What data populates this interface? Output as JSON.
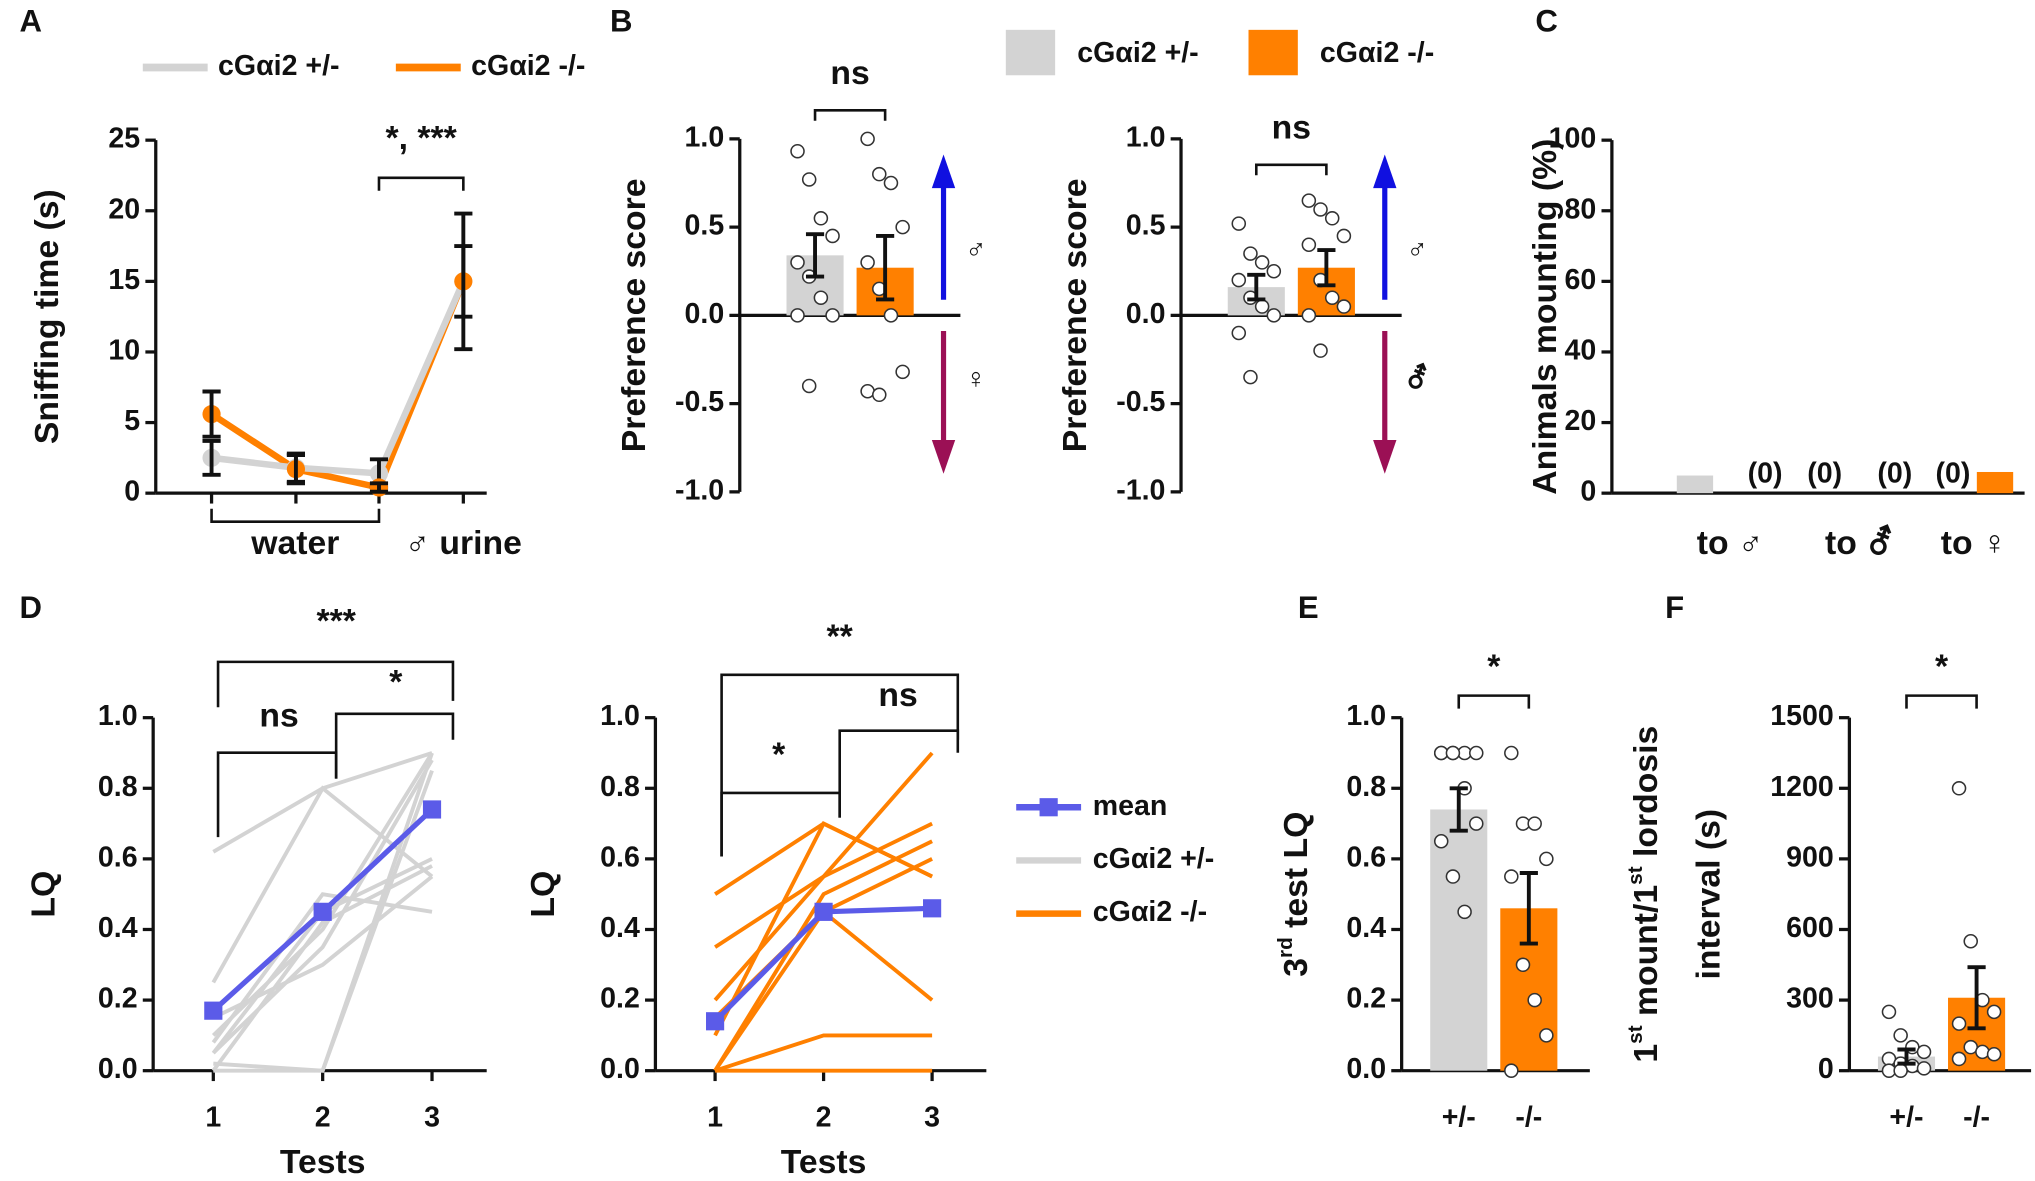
{
  "chart_data": [
    {
      "panel": "A",
      "type": "line",
      "ylabel": "Sniffing time (s)",
      "categories": [
        null,
        null,
        null,
        null
      ],
      "x_group_labels": [
        "water",
        "♂ urine"
      ],
      "ylim": [
        0,
        25
      ],
      "yticks": [
        0,
        5,
        10,
        15,
        20,
        25
      ],
      "series": [
        {
          "name": "cGαi2 +/-",
          "color": "#d3d3d3",
          "values": [
            2.5,
            1.8,
            1.4,
            15
          ],
          "errors": [
            1.2,
            1.0,
            1.0,
            2.5
          ]
        },
        {
          "name": "cGαi2 -/-",
          "color": "#ff8000",
          "values": [
            5.6,
            1.7,
            0.4,
            15
          ],
          "errors": [
            1.6,
            1.0,
            0.3,
            4.8
          ]
        }
      ],
      "annotations": [
        "*, ***"
      ]
    },
    {
      "panel": "B",
      "type": "bar",
      "ylabel": "Preference score",
      "categories": [
        null,
        null
      ],
      "legend": [
        {
          "name": "cGαi2 +/-",
          "color": "#d3d3d3"
        },
        {
          "name": "cGαi2 -/-",
          "color": "#ff8000"
        }
      ],
      "ylim": [
        -1,
        1
      ],
      "yticks": [
        {
          "value": 1,
          "label": "1.0"
        },
        0.5,
        {
          "value": 0,
          "label": "0.0"
        },
        -0.5,
        {
          "value": -1,
          "label": "-1.0"
        }
      ],
      "values": [
        0.34,
        0.27
      ],
      "errors": [
        0.12,
        0.18
      ],
      "colors": [
        "#d3d3d3",
        "#ff8000"
      ],
      "points": [
        [
          0.93,
          0.77,
          0.55,
          0.45,
          0.3,
          0.22,
          0.1,
          0.0,
          0.0,
          -0.4
        ],
        [
          1.0,
          0.8,
          0.75,
          0.5,
          0.3,
          0.15,
          0.0,
          -0.32,
          -0.43,
          -0.45
        ]
      ],
      "annotations": [
        "ns"
      ],
      "symbols": [
        "♂",
        "♀"
      ]
    },
    {
      "type": "bar",
      "ylabel": "Preference score",
      "categories": [
        null,
        null
      ],
      "ylim": [
        -1,
        1
      ],
      "yticks": [
        {
          "value": 1,
          "label": "1.0"
        },
        0.5,
        {
          "value": 0,
          "label": "0.0"
        },
        -0.5,
        {
          "value": -1,
          "label": "-1.0"
        }
      ],
      "values": [
        0.16,
        0.27
      ],
      "errors": [
        0.07,
        0.1
      ],
      "colors": [
        "#d3d3d3",
        "#ff8000"
      ],
      "points": [
        [
          0.52,
          0.35,
          0.3,
          0.25,
          0.2,
          0.1,
          0.05,
          0.0,
          -0.1,
          -0.35
        ],
        [
          0.65,
          0.6,
          0.55,
          0.45,
          0.4,
          0.2,
          0.1,
          0.05,
          0.0,
          -0.2
        ]
      ],
      "annotations": [
        "ns"
      ],
      "symbols": [
        "♂",
        "⚦"
      ]
    },
    {
      "panel": "C",
      "type": "bar",
      "ylabel": "Animals mounting (%)",
      "categories": [
        "to ♂",
        "to ⚦",
        "to ♀"
      ],
      "ylim": [
        0,
        100
      ],
      "yticks": [
        0,
        20,
        40,
        60,
        80,
        100
      ],
      "series": [
        {
          "color": "#d3d3d3",
          "values": [
            5,
            0,
            0
          ],
          "value_labels": [
            null,
            "(0)",
            "(0)"
          ]
        },
        {
          "color": "#ff8000",
          "values": [
            0,
            0,
            6
          ],
          "value_labels": [
            "(0)",
            "(0)",
            null
          ]
        }
      ]
    },
    {
      "panel": "D",
      "type": "line",
      "ylabel": "LQ",
      "xlabel": "Tests",
      "x": [
        1,
        2,
        3
      ],
      "xlim": [
        0.45,
        3.5
      ],
      "xticks": [
        1,
        2,
        3
      ],
      "ylim": [
        0,
        1
      ],
      "yticks": [
        {
          "value": 0,
          "label": "0.0"
        },
        0.2,
        0.4,
        0.6,
        0.8,
        {
          "value": 1,
          "label": "1.0"
        }
      ],
      "series": [
        {
          "name": "mean",
          "color": "#5b5be8",
          "values": [
            0.17,
            0.45,
            0.74
          ]
        },
        {
          "name": "cGαi2 +/-",
          "color": "#d3d3d3",
          "lines": [
            [
              0.62,
              0.8,
              0.9
            ],
            [
              0.25,
              0.8,
              0.55
            ],
            [
              0.1,
              0.4,
              0.9
            ],
            [
              0.05,
              0.45,
              0.6
            ],
            [
              0.0,
              0.42,
              0.58
            ],
            [
              0.05,
              0.35,
              0.88
            ],
            [
              0.0,
              0.0,
              0.85
            ],
            [
              0.08,
              0.5,
              0.45
            ],
            [
              0.02,
              0.0,
              0.9
            ],
            [
              0.15,
              0.3,
              0.55
            ]
          ]
        }
      ],
      "annotations": [
        "***",
        "ns",
        "*"
      ]
    },
    {
      "type": "line",
      "ylabel": "LQ",
      "xlabel": "Tests",
      "x": [
        1,
        2,
        3
      ],
      "xlim": [
        0.45,
        3.5
      ],
      "xticks": [
        1,
        2,
        3
      ],
      "ylim": [
        0,
        1
      ],
      "yticks": [
        {
          "value": 0,
          "label": "0.0"
        },
        0.2,
        0.4,
        0.6,
        0.8,
        {
          "value": 1,
          "label": "1.0"
        }
      ],
      "series": [
        {
          "color": "#5b5be8",
          "values": [
            0.14,
            0.45,
            0.46
          ]
        },
        {
          "name": "cGαi2 -/-",
          "color": "#ff8000",
          "lines": [
            [
              0.5,
              0.7,
              0.55
            ],
            [
              0.35,
              0.55,
              0.9
            ],
            [
              0.2,
              0.55,
              0.7
            ],
            [
              0.15,
              0.45,
              0.2
            ],
            [
              0.0,
              0.5,
              0.65
            ],
            [
              0.0,
              0.1,
              0.1
            ],
            [
              0.0,
              0.0,
              0.0
            ],
            [
              0.1,
              0.7,
              0.55
            ],
            [
              0.0,
              0.45,
              0.6
            ]
          ]
        }
      ],
      "annotations": [
        "**",
        "*",
        "ns"
      ]
    },
    {
      "panel": "E",
      "type": "bar",
      "ylabel": [
        "3",
        "rd",
        " test LQ"
      ],
      "categories": [
        "+/-",
        "-/-"
      ],
      "ylim": [
        0,
        1
      ],
      "yticks": [
        {
          "value": 0,
          "label": "0.0"
        },
        0.2,
        0.4,
        0.6,
        0.8,
        {
          "value": 1,
          "label": "1.0"
        }
      ],
      "values": [
        0.74,
        0.46
      ],
      "errors": [
        0.06,
        0.1
      ],
      "colors": [
        "#d3d3d3",
        "#ff8000"
      ],
      "points": [
        [
          0.9,
          0.9,
          0.9,
          0.9,
          0.9,
          0.9,
          0.8,
          0.7,
          0.65,
          0.55,
          0.45
        ],
        [
          0.9,
          0.7,
          0.7,
          0.6,
          0.55,
          0.3,
          0.2,
          0.1,
          0.0
        ]
      ],
      "annotations": [
        "*"
      ]
    },
    {
      "panel": "F",
      "type": "bar",
      "ylabel": [
        [
          "1",
          "st",
          " mount/1",
          "st",
          " lordosis"
        ],
        [
          "interval (s)"
        ]
      ],
      "categories": [
        "+/-",
        "-/-"
      ],
      "ylim": [
        0,
        1500
      ],
      "yticks": [
        0,
        300,
        600,
        900,
        1200,
        1500
      ],
      "values": [
        60,
        310
      ],
      "errors": [
        30,
        130
      ],
      "colors": [
        "#d3d3d3",
        "#ff8000"
      ],
      "points": [
        [
          250,
          150,
          100,
          80,
          50,
          30,
          20,
          10,
          0,
          0
        ],
        [
          1200,
          550,
          300,
          250,
          200,
          100,
          80,
          70,
          50
        ]
      ],
      "annotations": [
        "*"
      ]
    }
  ]
}
